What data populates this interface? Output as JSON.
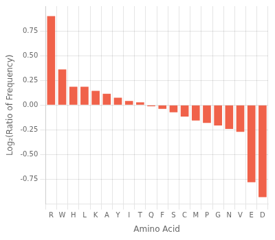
{
  "chart_data": {
    "type": "bar",
    "categories": [
      "R",
      "W",
      "H",
      "L",
      "K",
      "A",
      "Y",
      "I",
      "T",
      "Q",
      "F",
      "S",
      "C",
      "M",
      "P",
      "G",
      "N",
      "V",
      "E",
      "D"
    ],
    "values": [
      0.9,
      0.36,
      0.185,
      0.185,
      0.145,
      0.115,
      0.075,
      0.042,
      0.028,
      -0.012,
      -0.038,
      -0.072,
      -0.115,
      -0.155,
      -0.18,
      -0.205,
      -0.24,
      -0.27,
      -0.78,
      -0.93
    ],
    "color": "#f0624a",
    "xlabel": "Amino Acid",
    "ylabel": "Log₂(Ratio of Frequency)",
    "ylim": [
      -1.0,
      1.0
    ],
    "yticks": [
      -0.75,
      {
        "value": -0.5,
        "label": "-0.50"
      },
      -0.25,
      {
        "value": 0,
        "label": "0.00"
      },
      0.25,
      {
        "value": 0.5,
        "label": "0.50"
      },
      0.75
    ],
    "grid": true
  }
}
